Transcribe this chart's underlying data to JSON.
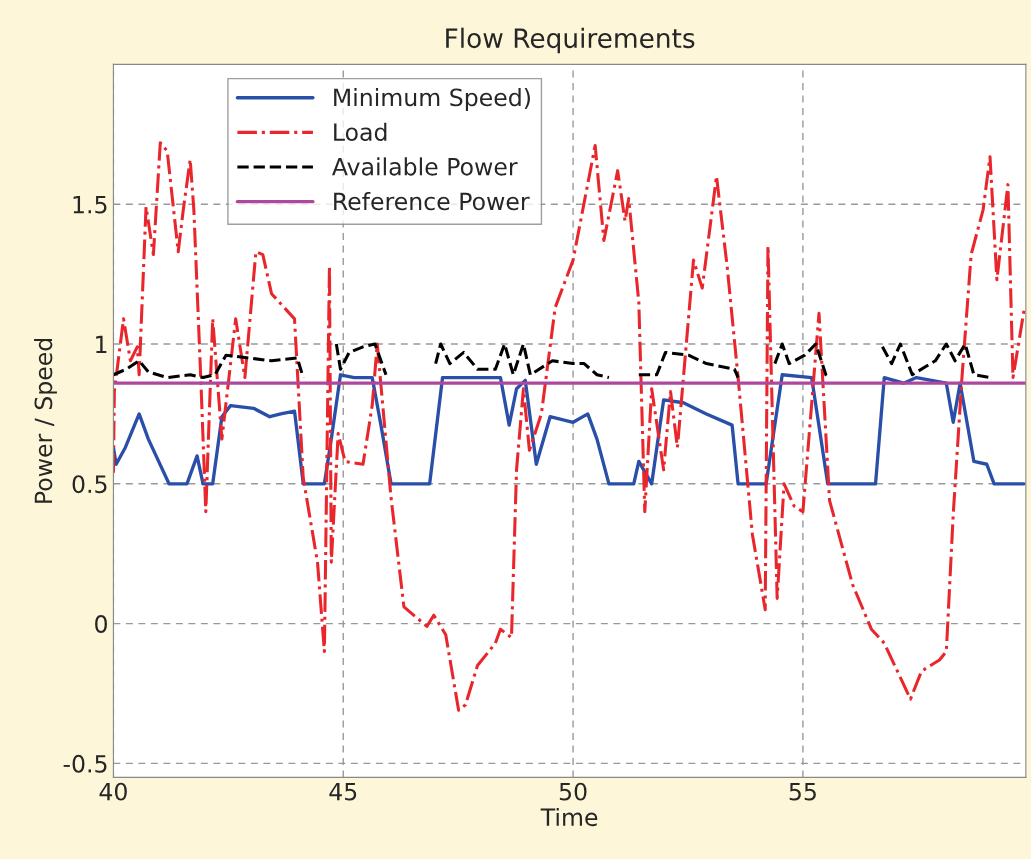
{
  "chart_data": {
    "type": "line",
    "title": "Flow Requirements",
    "xlabel": "Time",
    "ylabel": "Power / Speed",
    "xlim": [
      40,
      59.85
    ],
    "xticks": [
      40,
      45,
      50,
      55
    ],
    "ylim": [
      -0.55,
      2.0
    ],
    "yticks": [
      -0.5,
      0,
      0.5,
      1,
      1.5
    ],
    "grid": true,
    "legend": "top left",
    "marker": "none",
    "series": [
      {
        "name": "Minimum Speed)",
        "color": "#2a4fa8",
        "line_style": "solid",
        "x": [
          40.0,
          40.06,
          40.26,
          40.56,
          40.76,
          41.21,
          41.6,
          41.82,
          41.95,
          42.16,
          42.36,
          42.55,
          43.05,
          43.4,
          43.64,
          43.94,
          44.13,
          44.59,
          44.74,
          44.94,
          45.24,
          45.63,
          45.82,
          46.04,
          46.88,
          47.16,
          47.62,
          48.42,
          48.61,
          48.77,
          48.96,
          49.2,
          49.5,
          50.0,
          50.32,
          50.52,
          50.78,
          51.32,
          51.43,
          51.71,
          51.97,
          52.4,
          52.9,
          53.46,
          53.59,
          54.2,
          54.55,
          55.19,
          55.54,
          56.58,
          56.77,
          57.19,
          57.47,
          58.12,
          58.27,
          58.42,
          58.72,
          59.0,
          59.16,
          59.81
        ],
        "values": [
          0.63,
          0.57,
          0.63,
          0.75,
          0.66,
          0.5,
          0.5,
          0.6,
          0.5,
          0.5,
          0.74,
          0.78,
          0.77,
          0.74,
          0.75,
          0.76,
          0.5,
          0.5,
          0.66,
          0.89,
          0.88,
          0.88,
          0.71,
          0.5,
          0.5,
          0.88,
          0.88,
          0.88,
          0.71,
          0.84,
          0.87,
          0.57,
          0.74,
          0.72,
          0.75,
          0.66,
          0.5,
          0.5,
          0.58,
          0.5,
          0.8,
          0.79,
          0.75,
          0.71,
          0.5,
          0.5,
          0.89,
          0.88,
          0.5,
          0.5,
          0.88,
          0.86,
          0.88,
          0.86,
          0.72,
          0.86,
          0.58,
          0.57,
          0.5,
          0.5
        ]
      },
      {
        "name": "Load",
        "color": "#e8262b",
        "line_style": "dashdot",
        "x": [
          40.0,
          40.02,
          40.22,
          40.37,
          40.52,
          40.56,
          40.71,
          40.87,
          41.02,
          41.17,
          41.41,
          41.52,
          41.67,
          41.75,
          41.9,
          42.01,
          42.16,
          42.36,
          42.66,
          42.86,
          43.1,
          43.25,
          43.44,
          43.94,
          44.13,
          44.44,
          44.59,
          44.7,
          44.74,
          44.89,
          45.04,
          45.43,
          45.63,
          45.74,
          46.04,
          46.32,
          46.82,
          46.97,
          47.23,
          47.51,
          47.66,
          47.92,
          48.31,
          48.42,
          48.66,
          48.77,
          48.92,
          49.05,
          49.31,
          49.61,
          50.0,
          50.48,
          50.67,
          50.97,
          51.13,
          51.21,
          51.43,
          51.56,
          51.71,
          51.97,
          52.12,
          52.27,
          52.62,
          52.81,
          53.12,
          53.35,
          53.59,
          53.9,
          54.18,
          54.24,
          54.44,
          54.59,
          54.81,
          55.0,
          55.35,
          55.58,
          56.08,
          56.49,
          56.77,
          57.34,
          57.58,
          57.97,
          58.12,
          58.27,
          58.46,
          58.66,
          58.92,
          59.07,
          59.22,
          59.46,
          59.57,
          59.81
        ],
        "values": [
          0.54,
          0.83,
          1.09,
          0.94,
          0.99,
          0.89,
          1.49,
          1.32,
          1.72,
          1.69,
          1.33,
          1.48,
          1.66,
          1.48,
          0.88,
          0.4,
          1.09,
          0.66,
          1.09,
          0.88,
          1.33,
          1.32,
          1.18,
          1.09,
          0.52,
          0.22,
          -0.1,
          1.28,
          0.22,
          0.68,
          0.58,
          0.57,
          0.78,
          1.0,
          0.45,
          0.06,
          -0.01,
          0.03,
          -0.04,
          -0.31,
          -0.29,
          -0.15,
          -0.07,
          -0.02,
          -0.05,
          0.55,
          0.84,
          0.62,
          0.75,
          1.13,
          1.3,
          1.71,
          1.37,
          1.62,
          1.44,
          1.52,
          1.15,
          0.4,
          0.84,
          0.55,
          0.83,
          0.63,
          1.3,
          1.2,
          1.6,
          1.28,
          0.88,
          0.32,
          0.05,
          1.35,
          0.09,
          0.5,
          0.42,
          0.4,
          1.11,
          0.44,
          0.14,
          -0.02,
          -0.07,
          -0.27,
          -0.17,
          -0.13,
          -0.1,
          0.39,
          0.88,
          1.32,
          1.48,
          1.67,
          1.23,
          1.57,
          0.88,
          1.12
        ]
      },
      {
        "name": "Available Power",
        "color": "#000000",
        "line_style": "dashed",
        "x": [
          40.0,
          40.28,
          40.56,
          40.76,
          41.17,
          41.67,
          41.95,
          42.21,
          42.45,
          42.94,
          43.44,
          44.0,
          44.13,
          44.5,
          44.85,
          44.94,
          45.13,
          45.43,
          45.69,
          45.93,
          46.9,
          47.01,
          47.12,
          47.32,
          47.62,
          47.92,
          48.31,
          48.51,
          48.7,
          48.92,
          49.07,
          49.55,
          50.0,
          50.24,
          50.52,
          50.78,
          51.2,
          51.43,
          51.82,
          52.01,
          52.51,
          52.9,
          53.51,
          53.59,
          54.0,
          54.39,
          54.55,
          54.7,
          55.04,
          55.28,
          55.5,
          55.58,
          56.3,
          56.73,
          56.93,
          57.12,
          57.38,
          57.88,
          58.12,
          58.31,
          58.53,
          58.72,
          59.07
        ],
        "values": [
          0.89,
          0.91,
          0.94,
          0.9,
          0.88,
          0.89,
          0.88,
          0.89,
          0.96,
          0.95,
          0.94,
          0.95,
          0.88,
          null,
          1.0,
          0.91,
          0.97,
          0.99,
          1.0,
          0.89,
          null,
          0.93,
          1.0,
          0.93,
          0.97,
          0.91,
          0.91,
          1.0,
          0.89,
          1.0,
          0.89,
          0.94,
          0.93,
          0.93,
          0.89,
          0.88,
          null,
          0.89,
          0.89,
          0.97,
          0.96,
          0.93,
          0.91,
          0.88,
          null,
          0.93,
          1.0,
          0.93,
          0.96,
          1.0,
          0.89,
          0.88,
          null,
          0.99,
          0.93,
          1.0,
          0.89,
          0.94,
          1.0,
          0.94,
          1.0,
          0.89,
          0.88
        ]
      },
      {
        "name": "Reference Power",
        "color": "#b0479e",
        "line_style": "solid",
        "x": [
          40,
          59.85
        ],
        "values": [
          0.86,
          0.86
        ]
      }
    ]
  }
}
